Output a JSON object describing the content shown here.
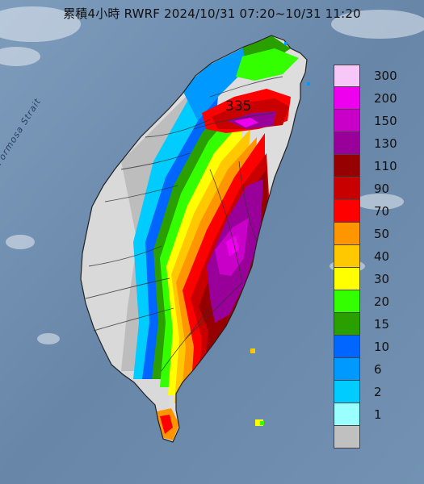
{
  "title": "累積4小時 RWRF 2024/10/31 07:20~10/31 11:20",
  "max_label": "335",
  "strait_label": "Formosa Strait",
  "legend": {
    "items": [
      {
        "label": "300",
        "color": "#f7c8f7"
      },
      {
        "label": "200",
        "color": "#ee00ee"
      },
      {
        "label": "150",
        "color": "#c800c8"
      },
      {
        "label": "130",
        "color": "#990099"
      },
      {
        "label": "110",
        "color": "#960000"
      },
      {
        "label": "90",
        "color": "#c80000"
      },
      {
        "label": "70",
        "color": "#ff0000"
      },
      {
        "label": "50",
        "color": "#ff9600"
      },
      {
        "label": "40",
        "color": "#ffc800"
      },
      {
        "label": "30",
        "color": "#ffff00"
      },
      {
        "label": "20",
        "color": "#33ff00"
      },
      {
        "label": "15",
        "color": "#2aa000"
      },
      {
        "label": "10",
        "color": "#0066ff"
      },
      {
        "label": "6",
        "color": "#0099ff"
      },
      {
        "label": "2",
        "color": "#00ccff"
      },
      {
        "label": "1",
        "color": "#99ffff"
      },
      {
        "label": "",
        "color": "#c0c0c0"
      }
    ]
  },
  "colors": {
    "sea": "#6f8fb0",
    "land_dry": "#dddddd"
  }
}
